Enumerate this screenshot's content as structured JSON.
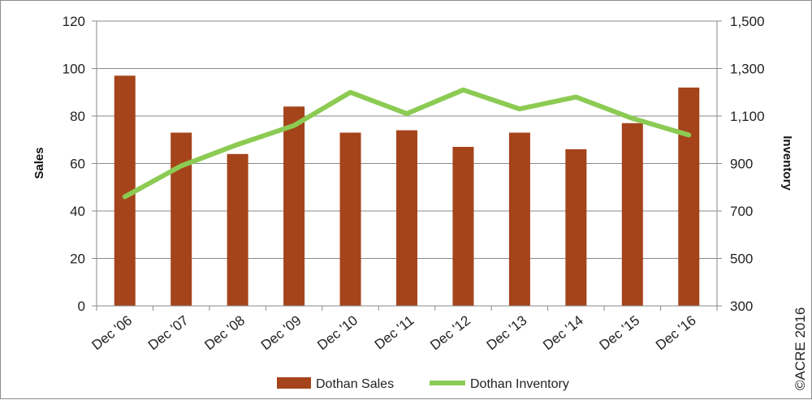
{
  "chart_data": {
    "type": "bar+line",
    "categories": [
      "Dec '06",
      "Dec '07",
      "Dec '08",
      "Dec '09",
      "Dec '10",
      "Dec '11",
      "Dec '12",
      "Dec '13",
      "Dec '14",
      "Dec '15",
      "Dec '16"
    ],
    "series": [
      {
        "name": "Dothan Sales",
        "type": "bar",
        "axis": "left",
        "color": "#A5441B",
        "values": [
          97,
          73,
          64,
          84,
          73,
          74,
          67,
          73,
          66,
          77,
          92
        ]
      },
      {
        "name": "Dothan Inventory",
        "type": "line",
        "axis": "right",
        "color": "#8CCB53",
        "values": [
          760,
          890,
          980,
          1060,
          1200,
          1110,
          1210,
          1130,
          1180,
          1090,
          1020
        ]
      }
    ],
    "ylabel": "Sales",
    "y2label": "Inventory",
    "ylim": [
      0,
      120
    ],
    "y2lim": [
      300,
      1500
    ],
    "yticks": [
      "0",
      "20",
      "40",
      "60",
      "80",
      "100",
      "120"
    ],
    "y2ticks": [
      "300",
      "500",
      "700",
      "900",
      "1,100",
      "1,300",
      "1,500"
    ],
    "grid": true,
    "legend_position": "bottom"
  },
  "copyright": "©ACRE 2016"
}
